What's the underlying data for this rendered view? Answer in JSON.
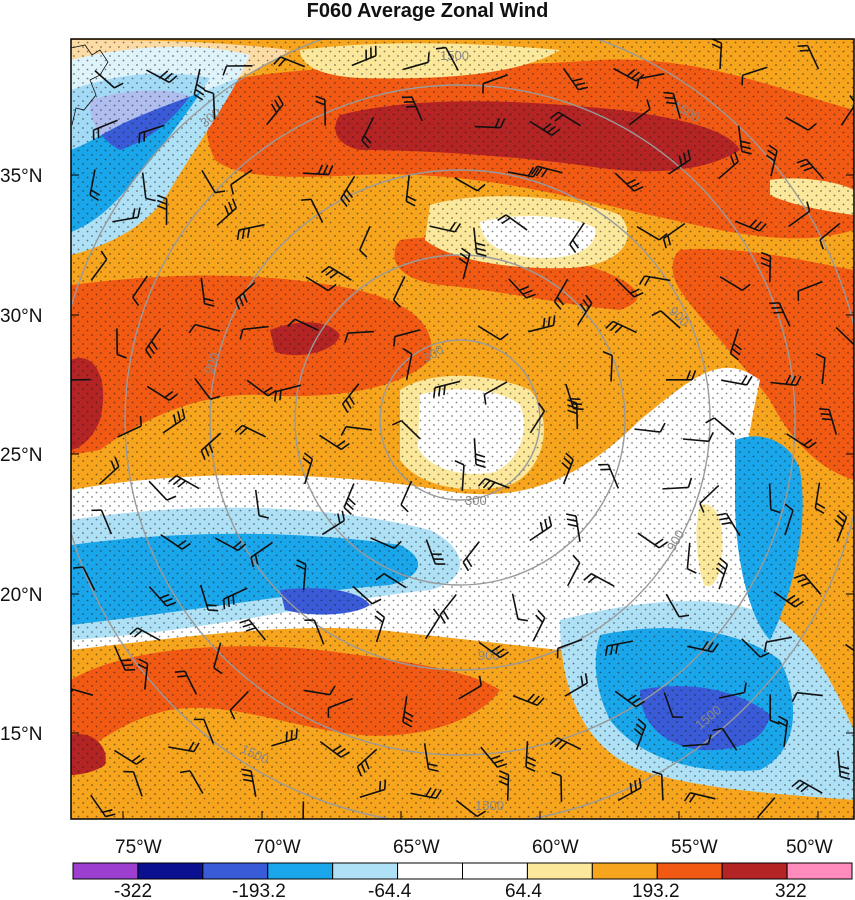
{
  "title": "F060 Average Zonal Wind",
  "lat_labels": [
    "35°N",
    "30°N",
    "25°N",
    "20°N",
    "15°N"
  ],
  "lon_labels": [
    "75°W",
    "70°W",
    "65°W",
    "60°W",
    "55°W",
    "50°W"
  ],
  "colorbar": {
    "labels": [
      "-322",
      "-193.2",
      "-64.4",
      "64.4",
      "193.2",
      "322"
    ],
    "colors": [
      "#9c3fd0",
      "#0a108f",
      "#3a5bd8",
      "#1aa6ea",
      "#aee0f6",
      "#ffffff",
      "#ffffff",
      "#fbe89a",
      "#f8a51e",
      "#f25a14",
      "#b42424",
      "#ff8cbc"
    ]
  },
  "ring_labels": [
    "1500",
    "1500",
    "300",
    "300",
    "300",
    "900",
    "900",
    "900",
    "900",
    "1500",
    "1500",
    "1500"
  ],
  "colors": {
    "ring": "#9a9a9a",
    "frame": "#000000"
  }
}
